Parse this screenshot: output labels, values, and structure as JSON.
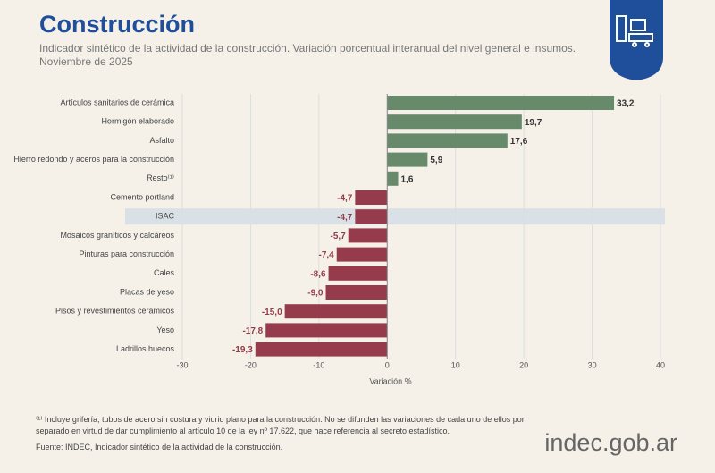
{
  "header": {
    "title": "Construcción",
    "subtitle": "Indicador sintético de la actividad de la construcción. Variación porcentual interanual del nivel general e insumos.",
    "period": "Noviembre de 2025"
  },
  "chart_data": {
    "type": "hbar",
    "categories": [
      "Artículos sanitarios de cerámica",
      "Hormigón elaborado",
      "Asfalto",
      "Hierro redondo y aceros para la construcción",
      "Resto⁽¹⁾",
      "Cemento portland",
      "ISAC",
      "Mosaicos graníticos y calcáreos",
      "Pinturas para construcción",
      "Cales",
      "Placas de yeso",
      "Pisos y revestimientos cerámicos",
      "Yeso",
      "Ladrillos huecos"
    ],
    "values": [
      33.2,
      19.7,
      17.6,
      5.9,
      1.6,
      -4.7,
      -4.7,
      -5.7,
      -7.4,
      -8.6,
      -9.0,
      -15.0,
      -17.8,
      -19.3
    ],
    "value_labels": [
      "33,2",
      "19,7",
      "17,6",
      "5,9",
      "1,6",
      "-4,7",
      "-4,7",
      "-5,7",
      "-7,4",
      "-8,6",
      "-9,0",
      "-15,0",
      "-17,8",
      "-19,3"
    ],
    "color_positive": "#678a6b",
    "color_negative": "#963b4b",
    "highlight_index": 6,
    "xlim": [
      -30,
      40
    ],
    "xticks": [
      -30,
      -20,
      -10,
      0,
      10,
      20,
      30,
      40
    ],
    "xlabel": "Variación %",
    "grid": true
  },
  "footer": {
    "note": "⁽¹⁾ Incluye grifería, tubos de acero sin costura y vidrio plano para la construcción. No se difunden las variaciones de cada uno de ellos por separado en virtud de dar cumplimiento al artículo 10 de la ley  nº 17.622, que hace referencia al secreto estadístico.",
    "source": "Fuente: INDEC, Indicador sintético de la actividad de la construcción.",
    "brand": "indec.gob.ar"
  }
}
